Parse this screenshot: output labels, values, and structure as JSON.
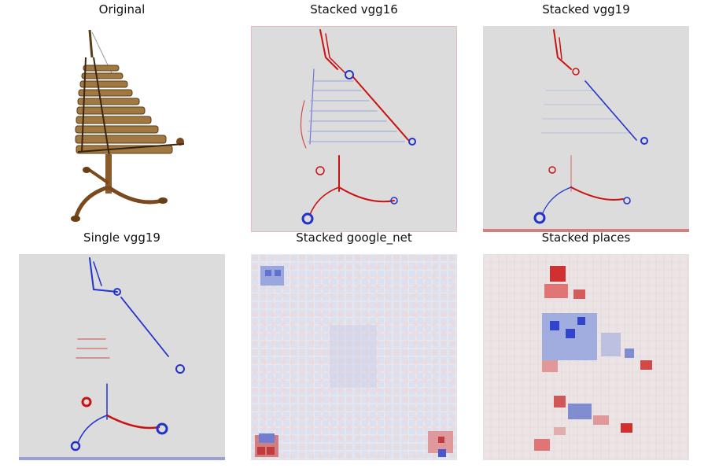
{
  "panels": [
    {
      "title": "Original"
    },
    {
      "title": "Stacked vgg16"
    },
    {
      "title": "Stacked vgg19"
    },
    {
      "title": "Single vgg19"
    },
    {
      "title": "Stacked google_net"
    },
    {
      "title": "Stacked places"
    }
  ],
  "colors": {
    "background_map": "#dcdcdc",
    "positive": "#cc1111",
    "negative": "#2233cc",
    "wood": "#8b5a2b",
    "bar_metal": "#a07840"
  }
}
